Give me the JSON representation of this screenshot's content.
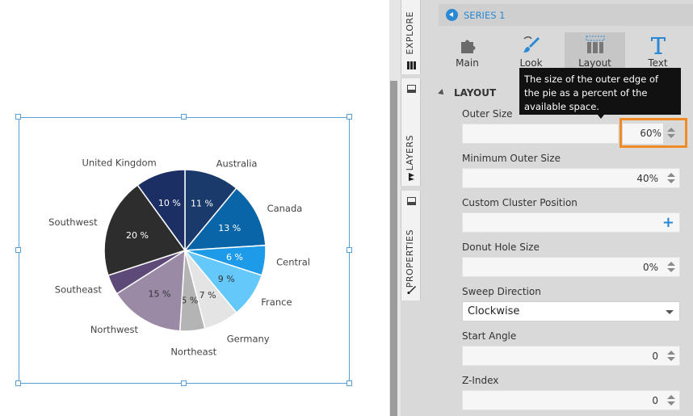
{
  "chart_data": {
    "type": "pie",
    "slices": [
      {
        "label": "Australia",
        "percent": 11,
        "pct_text": "11 %",
        "color": "#1a3a6b"
      },
      {
        "label": "Canada",
        "percent": 13,
        "pct_text": "13 %",
        "color": "#0a64a8"
      },
      {
        "label": "Central",
        "percent": 6,
        "pct_text": "6 %",
        "color": "#1e9be8"
      },
      {
        "label": "France",
        "percent": 9,
        "pct_text": "9 %",
        "color": "#64c8fa"
      },
      {
        "label": "Germany",
        "percent": 7,
        "pct_text": "7 %",
        "color": "#e4e4e4"
      },
      {
        "label": "Northeast",
        "percent": 5,
        "pct_text": "5 %",
        "color": "#b4b4b4"
      },
      {
        "label": "Northwest",
        "percent": 15,
        "pct_text": "15 %",
        "color": "#9a8aa6"
      },
      {
        "label": "Southeast",
        "percent": 4,
        "pct_text": "",
        "color": "#5d4a78"
      },
      {
        "label": "Southwest",
        "percent": 20,
        "pct_text": "20 %",
        "color": "#2d2d2d"
      },
      {
        "label": "United Kingdom",
        "percent": 10,
        "pct_text": "10 %",
        "color": "#1c2f64"
      }
    ]
  },
  "sidebar_tabs": {
    "explore": "EXPLORE",
    "layers": "LAYERS",
    "properties": "PROPERTIES"
  },
  "panel": {
    "series_label": "SERIES 1",
    "tabs": [
      {
        "label": "Main",
        "icon": "puzzle-icon"
      },
      {
        "label": "Look",
        "icon": "brush-icon"
      },
      {
        "label": "Layout",
        "icon": "layout-icon"
      },
      {
        "label": "Text",
        "icon": "text-icon"
      }
    ],
    "section_title": "LAYOUT",
    "tooltip": "The size of the outer edge of the pie as a percent of the available space.",
    "outer_size": {
      "label": "Outer Size",
      "value": "60%"
    },
    "min_outer_size": {
      "label": "Minimum Outer Size",
      "value": "40%"
    },
    "custom_cluster": {
      "label": "Custom Cluster Position",
      "action": "+"
    },
    "donut_hole": {
      "label": "Donut Hole Size",
      "value": "0%"
    },
    "sweep_direction": {
      "label": "Sweep Direction",
      "value": "Clockwise"
    },
    "start_angle": {
      "label": "Start Angle",
      "value": "0"
    },
    "z_index": {
      "label": "Z-Index",
      "value": "0"
    }
  },
  "colors": {
    "accent": "#2a88d4",
    "highlight_border": "#f08a24"
  }
}
